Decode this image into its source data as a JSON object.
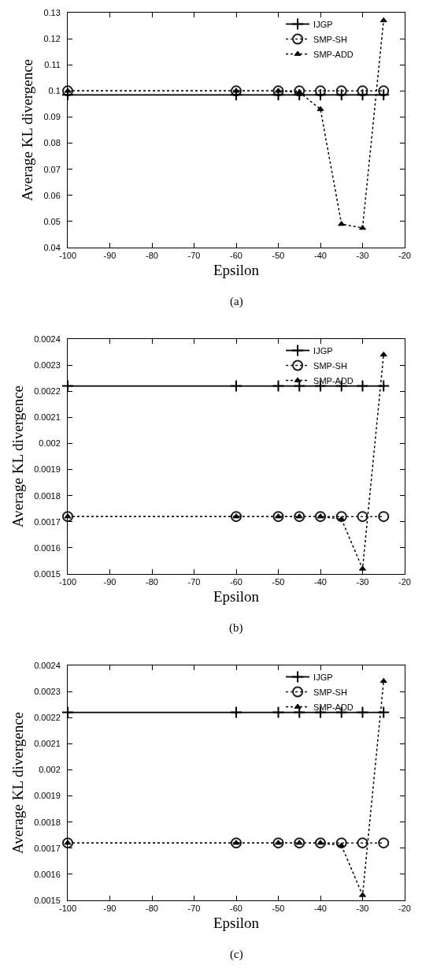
{
  "chart_data": [
    {
      "type": "line",
      "xlabel": "Epsilon",
      "ylabel": "Average KL divergence",
      "annotations": [
        "(a)"
      ],
      "x": [
        -100,
        -60,
        -50,
        -45,
        -40,
        -35,
        -30,
        -25
      ],
      "series": [
        {
          "name": "IJGP",
          "color": "#000000",
          "marker": "cross",
          "line_style": "solid",
          "values": [
            0.0985,
            0.0985,
            0.0985,
            0.0985,
            0.0985,
            0.0985,
            0.0985,
            0.0985
          ]
        },
        {
          "name": "SMP-SH",
          "color": "#1a1a1a",
          "marker": "circle",
          "line_style": "dotted",
          "values": [
            0.1,
            0.1,
            0.1,
            0.1,
            0.1,
            0.1,
            0.1,
            0.1
          ]
        },
        {
          "name": "SMP-ADD",
          "color": "#000000",
          "marker": "triangle",
          "line_style": "dotted",
          "values": [
            0.1,
            0.1,
            0.1,
            0.0995,
            0.093,
            0.049,
            0.0475,
            0.127
          ]
        }
      ],
      "xlim": [
        -100,
        -20
      ],
      "xticks": [
        -100,
        -90,
        -80,
        -70,
        -60,
        -50,
        -40,
        -30,
        -20
      ],
      "ylim": [
        0.04,
        0.13
      ],
      "yticks": [
        0.04,
        0.05,
        0.06,
        0.07,
        0.08,
        0.09,
        0.1,
        0.11,
        0.12,
        0.13
      ],
      "grid": false,
      "legend": "top right"
    },
    {
      "type": "line",
      "xlabel": "Epsilon",
      "ylabel": "Average KL divergence",
      "annotations": [
        "(b)"
      ],
      "x": [
        -100,
        -60,
        -50,
        -45,
        -40,
        -35,
        -30,
        -25
      ],
      "series": [
        {
          "name": "IJGP",
          "color": "#000000",
          "marker": "cross",
          "line_style": "solid",
          "values": [
            0.00222,
            0.00222,
            0.00222,
            0.00222,
            0.00222,
            0.00222,
            0.00222,
            0.00222
          ]
        },
        {
          "name": "SMP-SH",
          "color": "#1a1a1a",
          "marker": "circle",
          "line_style": "dotted",
          "values": [
            0.00172,
            0.00172,
            0.00172,
            0.00172,
            0.00172,
            0.00172,
            0.00172,
            0.00172
          ]
        },
        {
          "name": "SMP-ADD",
          "color": "#000000",
          "marker": "triangle",
          "line_style": "dotted",
          "values": [
            0.00172,
            0.00172,
            0.00172,
            0.00172,
            0.00172,
            0.00171,
            0.00152,
            0.00234
          ]
        }
      ],
      "xlim": [
        -100,
        -20
      ],
      "xticks": [
        -100,
        -90,
        -80,
        -70,
        -60,
        -50,
        -40,
        -30,
        -20
      ],
      "ylim": [
        0.0015,
        0.0024
      ],
      "yticks": [
        0.0015,
        0.0016,
        0.0017,
        0.0018,
        0.0019,
        0.002,
        0.0021,
        0.0022,
        0.0023,
        0.0024
      ],
      "grid": false,
      "legend": "top right"
    },
    {
      "type": "line",
      "xlabel": "Epsilon",
      "ylabel": "Average KL divergence",
      "annotations": [
        "(c)"
      ],
      "x": [
        -100,
        -60,
        -50,
        -45,
        -40,
        -35,
        -30,
        -25
      ],
      "series": [
        {
          "name": "IJGP",
          "color": "#000000",
          "marker": "cross",
          "line_style": "solid",
          "values": [
            0.00222,
            0.00222,
            0.00222,
            0.00222,
            0.00222,
            0.00222,
            0.00222,
            0.00222
          ]
        },
        {
          "name": "SMP-SH",
          "color": "#1a1a1a",
          "marker": "circle",
          "line_style": "dotted",
          "values": [
            0.00172,
            0.00172,
            0.00172,
            0.00172,
            0.00172,
            0.00172,
            0.00172,
            0.00172
          ]
        },
        {
          "name": "SMP-ADD",
          "color": "#000000",
          "marker": "triangle",
          "line_style": "dotted",
          "values": [
            0.00172,
            0.00172,
            0.00172,
            0.00172,
            0.00172,
            0.00171,
            0.00152,
            0.00234
          ]
        }
      ],
      "xlim": [
        -100,
        -20
      ],
      "xticks": [
        -100,
        -90,
        -80,
        -70,
        -60,
        -50,
        -40,
        -30,
        -20
      ],
      "ylim": [
        0.0015,
        0.0024
      ],
      "yticks": [
        0.0015,
        0.0016,
        0.0017,
        0.0018,
        0.0019,
        0.002,
        0.0021,
        0.0022,
        0.0023,
        0.0024
      ],
      "grid": false,
      "legend": "top right"
    }
  ]
}
